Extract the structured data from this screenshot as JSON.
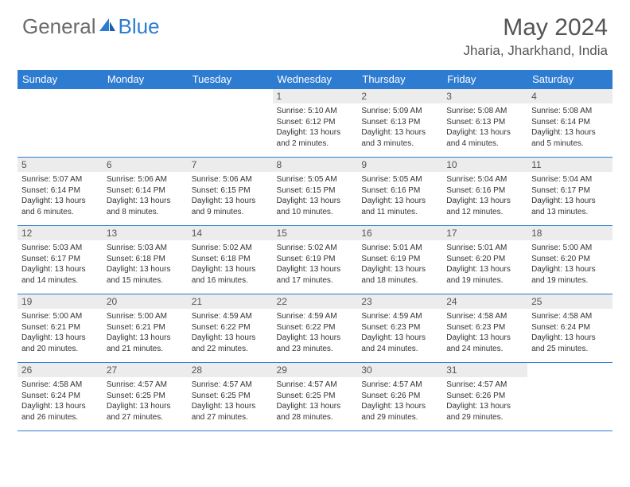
{
  "logo": {
    "general": "General",
    "blue": "Blue"
  },
  "title": "May 2024",
  "location": "Jharia, Jharkhand, India",
  "colors": {
    "header_bg": "#2e7cd1",
    "header_text": "#ffffff",
    "daynum_bg": "#ececec",
    "border": "#2e7cd1",
    "body_text": "#333333",
    "title_text": "#555555"
  },
  "days_of_week": [
    "Sunday",
    "Monday",
    "Tuesday",
    "Wednesday",
    "Thursday",
    "Friday",
    "Saturday"
  ],
  "weeks": [
    [
      null,
      null,
      null,
      {
        "n": "1",
        "sr": "Sunrise: 5:10 AM",
        "ss": "Sunset: 6:12 PM",
        "dl": "Daylight: 13 hours and 2 minutes."
      },
      {
        "n": "2",
        "sr": "Sunrise: 5:09 AM",
        "ss": "Sunset: 6:13 PM",
        "dl": "Daylight: 13 hours and 3 minutes."
      },
      {
        "n": "3",
        "sr": "Sunrise: 5:08 AM",
        "ss": "Sunset: 6:13 PM",
        "dl": "Daylight: 13 hours and 4 minutes."
      },
      {
        "n": "4",
        "sr": "Sunrise: 5:08 AM",
        "ss": "Sunset: 6:14 PM",
        "dl": "Daylight: 13 hours and 5 minutes."
      }
    ],
    [
      {
        "n": "5",
        "sr": "Sunrise: 5:07 AM",
        "ss": "Sunset: 6:14 PM",
        "dl": "Daylight: 13 hours and 6 minutes."
      },
      {
        "n": "6",
        "sr": "Sunrise: 5:06 AM",
        "ss": "Sunset: 6:14 PM",
        "dl": "Daylight: 13 hours and 8 minutes."
      },
      {
        "n": "7",
        "sr": "Sunrise: 5:06 AM",
        "ss": "Sunset: 6:15 PM",
        "dl": "Daylight: 13 hours and 9 minutes."
      },
      {
        "n": "8",
        "sr": "Sunrise: 5:05 AM",
        "ss": "Sunset: 6:15 PM",
        "dl": "Daylight: 13 hours and 10 minutes."
      },
      {
        "n": "9",
        "sr": "Sunrise: 5:05 AM",
        "ss": "Sunset: 6:16 PM",
        "dl": "Daylight: 13 hours and 11 minutes."
      },
      {
        "n": "10",
        "sr": "Sunrise: 5:04 AM",
        "ss": "Sunset: 6:16 PM",
        "dl": "Daylight: 13 hours and 12 minutes."
      },
      {
        "n": "11",
        "sr": "Sunrise: 5:04 AM",
        "ss": "Sunset: 6:17 PM",
        "dl": "Daylight: 13 hours and 13 minutes."
      }
    ],
    [
      {
        "n": "12",
        "sr": "Sunrise: 5:03 AM",
        "ss": "Sunset: 6:17 PM",
        "dl": "Daylight: 13 hours and 14 minutes."
      },
      {
        "n": "13",
        "sr": "Sunrise: 5:03 AM",
        "ss": "Sunset: 6:18 PM",
        "dl": "Daylight: 13 hours and 15 minutes."
      },
      {
        "n": "14",
        "sr": "Sunrise: 5:02 AM",
        "ss": "Sunset: 6:18 PM",
        "dl": "Daylight: 13 hours and 16 minutes."
      },
      {
        "n": "15",
        "sr": "Sunrise: 5:02 AM",
        "ss": "Sunset: 6:19 PM",
        "dl": "Daylight: 13 hours and 17 minutes."
      },
      {
        "n": "16",
        "sr": "Sunrise: 5:01 AM",
        "ss": "Sunset: 6:19 PM",
        "dl": "Daylight: 13 hours and 18 minutes."
      },
      {
        "n": "17",
        "sr": "Sunrise: 5:01 AM",
        "ss": "Sunset: 6:20 PM",
        "dl": "Daylight: 13 hours and 19 minutes."
      },
      {
        "n": "18",
        "sr": "Sunrise: 5:00 AM",
        "ss": "Sunset: 6:20 PM",
        "dl": "Daylight: 13 hours and 19 minutes."
      }
    ],
    [
      {
        "n": "19",
        "sr": "Sunrise: 5:00 AM",
        "ss": "Sunset: 6:21 PM",
        "dl": "Daylight: 13 hours and 20 minutes."
      },
      {
        "n": "20",
        "sr": "Sunrise: 5:00 AM",
        "ss": "Sunset: 6:21 PM",
        "dl": "Daylight: 13 hours and 21 minutes."
      },
      {
        "n": "21",
        "sr": "Sunrise: 4:59 AM",
        "ss": "Sunset: 6:22 PM",
        "dl": "Daylight: 13 hours and 22 minutes."
      },
      {
        "n": "22",
        "sr": "Sunrise: 4:59 AM",
        "ss": "Sunset: 6:22 PM",
        "dl": "Daylight: 13 hours and 23 minutes."
      },
      {
        "n": "23",
        "sr": "Sunrise: 4:59 AM",
        "ss": "Sunset: 6:23 PM",
        "dl": "Daylight: 13 hours and 24 minutes."
      },
      {
        "n": "24",
        "sr": "Sunrise: 4:58 AM",
        "ss": "Sunset: 6:23 PM",
        "dl": "Daylight: 13 hours and 24 minutes."
      },
      {
        "n": "25",
        "sr": "Sunrise: 4:58 AM",
        "ss": "Sunset: 6:24 PM",
        "dl": "Daylight: 13 hours and 25 minutes."
      }
    ],
    [
      {
        "n": "26",
        "sr": "Sunrise: 4:58 AM",
        "ss": "Sunset: 6:24 PM",
        "dl": "Daylight: 13 hours and 26 minutes."
      },
      {
        "n": "27",
        "sr": "Sunrise: 4:57 AM",
        "ss": "Sunset: 6:25 PM",
        "dl": "Daylight: 13 hours and 27 minutes."
      },
      {
        "n": "28",
        "sr": "Sunrise: 4:57 AM",
        "ss": "Sunset: 6:25 PM",
        "dl": "Daylight: 13 hours and 27 minutes."
      },
      {
        "n": "29",
        "sr": "Sunrise: 4:57 AM",
        "ss": "Sunset: 6:25 PM",
        "dl": "Daylight: 13 hours and 28 minutes."
      },
      {
        "n": "30",
        "sr": "Sunrise: 4:57 AM",
        "ss": "Sunset: 6:26 PM",
        "dl": "Daylight: 13 hours and 29 minutes."
      },
      {
        "n": "31",
        "sr": "Sunrise: 4:57 AM",
        "ss": "Sunset: 6:26 PM",
        "dl": "Daylight: 13 hours and 29 minutes."
      },
      null
    ]
  ]
}
